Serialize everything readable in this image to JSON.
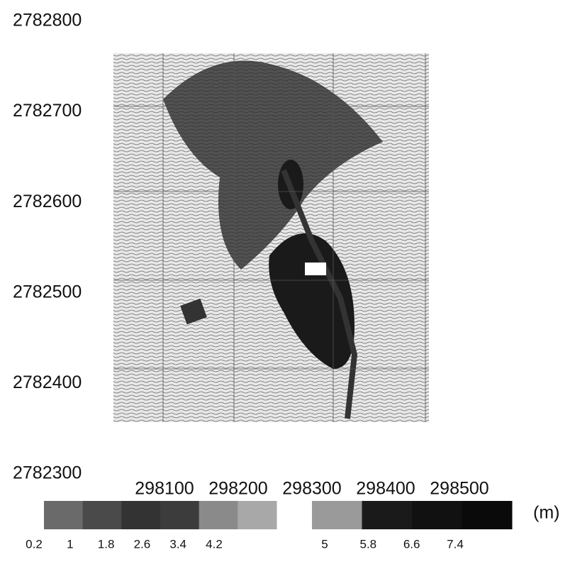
{
  "chart_data": {
    "type": "map",
    "xlim": [
      298100,
      298500
    ],
    "xticks": [
      298100,
      298200,
      298300,
      298400,
      298500
    ],
    "ylim": [
      2782300,
      2782800
    ],
    "yticks": [
      2782300,
      2782400,
      2782500,
      2782600,
      2782700,
      2782800
    ],
    "colorbar": {
      "unit": "(m)",
      "segments": [
        {
          "ticks": [
            0.2,
            1,
            1.8,
            2.6,
            3.4,
            4.2
          ],
          "colors": [
            "#6a6a6a",
            "#4a4a4a",
            "#333333",
            "#3c3c3c",
            "#8a8a8a",
            "#a8a8a8"
          ]
        },
        {
          "ticks": [
            5,
            5.8,
            6.6,
            7.4
          ],
          "colors": [
            "#9a9a9a",
            "#1a1a1a",
            "#111111",
            "#0a0a0a"
          ]
        }
      ]
    }
  }
}
